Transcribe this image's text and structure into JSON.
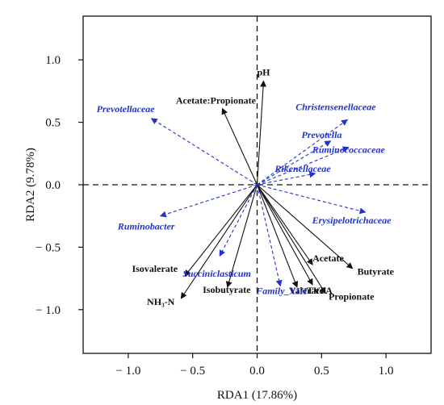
{
  "chart_data": {
    "type": "scatter",
    "xlabel": "RDA1 (17.86%)",
    "ylabel": "RDA2 (9.78%)",
    "xlim": [
      -1.35,
      1.35
    ],
    "ylim": [
      -1.35,
      1.35
    ],
    "xticks": [
      -1.0,
      -0.5,
      0.0,
      0.5,
      1.0
    ],
    "xtick_labels": [
      "− 1.0",
      "− 0.5",
      "0.0",
      "0.5",
      "1.0"
    ],
    "yticks": [
      1.0,
      0.5,
      0.0,
      -0.5,
      -1.0
    ],
    "ytick_labels": [
      "1.0",
      "0.5",
      "0.0",
      "− 0.5",
      "− 1.0"
    ],
    "zero_lines": "dashed",
    "grid": false,
    "env_color": "#111111",
    "taxa_color": "#2233cc",
    "environmental_vectors": [
      {
        "label": "pH",
        "x": 0.05,
        "y": 0.83
      },
      {
        "label": "Acetate:Propionate",
        "x": -0.27,
        "y": 0.61
      },
      {
        "label": "Acetate",
        "x": 0.43,
        "y": -0.64
      },
      {
        "label": "Butyrate",
        "x": 0.74,
        "y": -0.67
      },
      {
        "label": "TVFA",
        "x": 0.43,
        "y": -0.8
      },
      {
        "label": "Valerate",
        "x": 0.31,
        "y": -0.82
      },
      {
        "label": "Propionate",
        "x": 0.53,
        "y": -0.87
      },
      {
        "label": "Isovalerate",
        "x": -0.56,
        "y": -0.73
      },
      {
        "label": "Isobutyrate",
        "x": -0.23,
        "y": -0.82
      },
      {
        "label": "NH₃-N",
        "x": -0.59,
        "y": -0.91
      }
    ],
    "species_vectors": [
      {
        "label": "Prevotellaceae",
        "x": -0.82,
        "y": 0.53
      },
      {
        "label": "Christensenellaceae",
        "x": 0.7,
        "y": 0.52
      },
      {
        "label": "Prevotella",
        "x": 0.57,
        "y": 0.35
      },
      {
        "label": "Ruminococcaceae",
        "x": 0.71,
        "y": 0.3
      },
      {
        "label": "Rikenellaceae",
        "x": 0.45,
        "y": 0.09
      },
      {
        "label": "Erysipelotrichaceae",
        "x": 0.84,
        "y": -0.22
      },
      {
        "label": "Ruminobacter",
        "x": -0.75,
        "y": -0.25
      },
      {
        "label": "Succiniclasticum",
        "x": -0.29,
        "y": -0.57
      },
      {
        "label": "Family_XIII",
        "x": 0.18,
        "y": -0.81
      }
    ]
  }
}
